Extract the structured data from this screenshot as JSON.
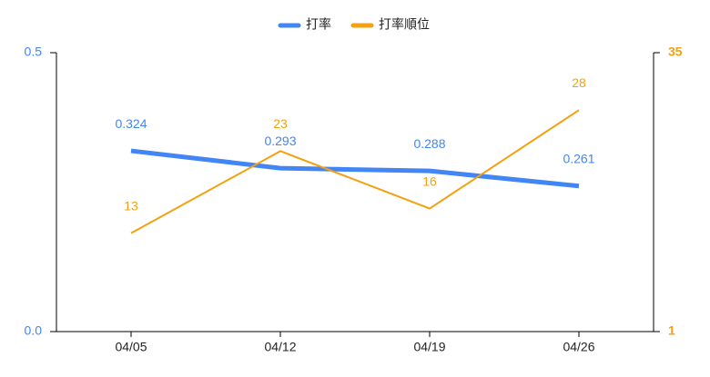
{
  "chart_data": {
    "type": "line",
    "categories": [
      "04/05",
      "04/12",
      "04/19",
      "04/26"
    ],
    "series": [
      {
        "name": "打率",
        "color": "#4285f4",
        "values": [
          0.324,
          0.293,
          0.288,
          0.261
        ]
      },
      {
        "name": "打率順位",
        "color": "#f4a00f",
        "axis": "y2",
        "values": [
          13,
          23,
          16,
          28
        ]
      }
    ],
    "ylim": [
      0,
      0.5
    ],
    "yticks": [
      {
        "value": 0,
        "label": "0.0"
      },
      0.5
    ],
    "y2lim": [
      1,
      35
    ],
    "y2ticks": [
      1,
      35
    ],
    "legend": "top"
  }
}
